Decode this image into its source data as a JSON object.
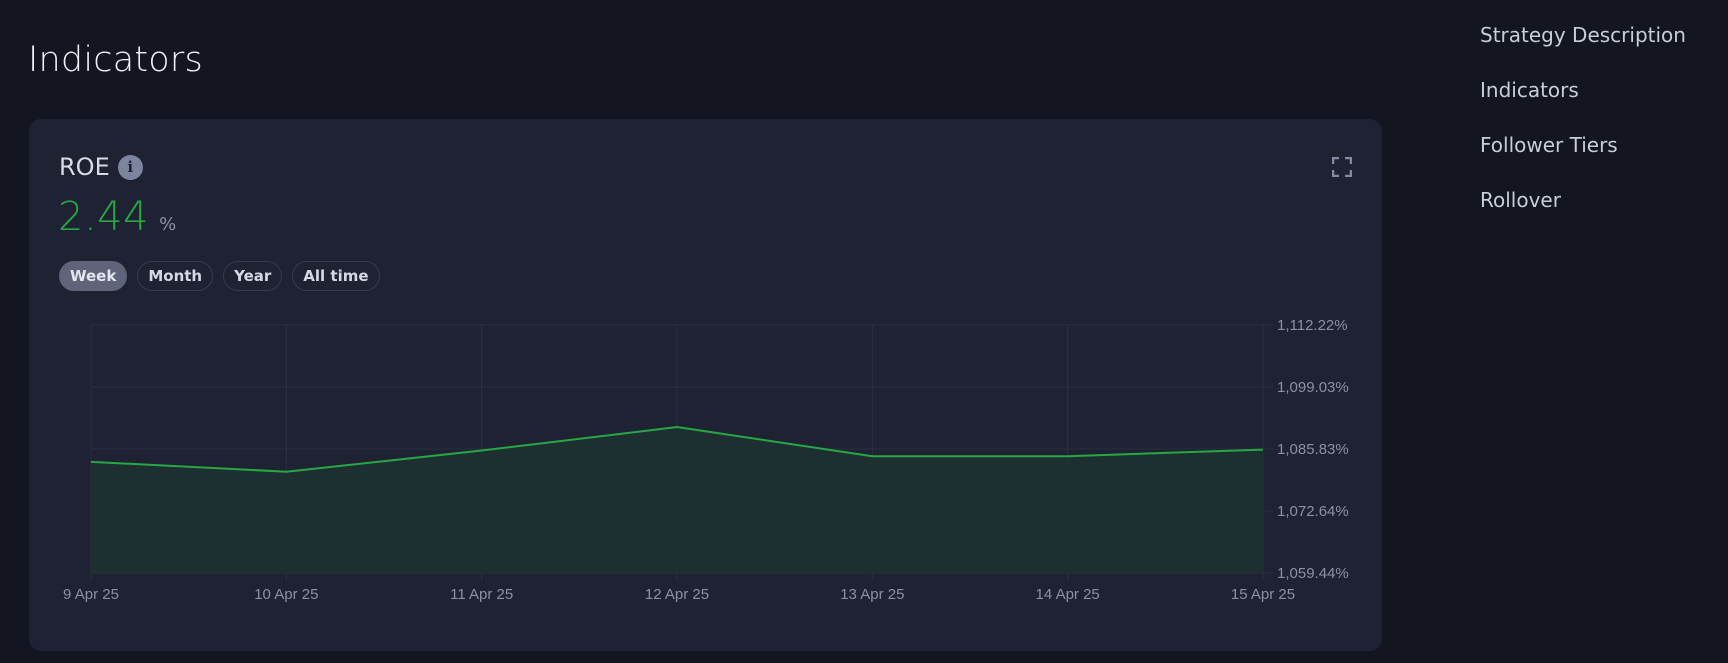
{
  "page": {
    "title": "Indicators"
  },
  "right_nav": {
    "items": [
      {
        "label": "Strategy Description"
      },
      {
        "label": "Indicators"
      },
      {
        "label": "Follower Tiers"
      },
      {
        "label": "Rollover"
      }
    ]
  },
  "card": {
    "metric_label": "ROE",
    "info_icon": "info-icon",
    "value": "2.44",
    "unit": "%",
    "value_color": "#27a844",
    "expand_icon": "fullscreen-icon",
    "periods": [
      {
        "label": "Week",
        "active": true
      },
      {
        "label": "Month",
        "active": false
      },
      {
        "label": "Year",
        "active": false
      },
      {
        "label": "All time",
        "active": false
      }
    ]
  },
  "chart_data": {
    "type": "area",
    "title": "ROE",
    "xlabel": "",
    "ylabel": "",
    "categories": [
      "9 Apr 25",
      "10 Apr 25",
      "11 Apr 25",
      "12 Apr 25",
      "13 Apr 25",
      "14 Apr 25",
      "15 Apr 25"
    ],
    "series": [
      {
        "name": "ROE",
        "color": "#27a844",
        "values": [
          1083.1,
          1081.0,
          1085.5,
          1090.5,
          1084.3,
          1084.3,
          1085.7
        ]
      }
    ],
    "y_ticks": [
      "1,112.22%",
      "1,099.03%",
      "1,085.83%",
      "1,072.64%",
      "1,059.44%"
    ],
    "y_tick_values": [
      1112.22,
      1099.03,
      1085.83,
      1072.64,
      1059.44
    ],
    "ylim": [
      1059.44,
      1112.22
    ],
    "y_axis_position": "right",
    "grid": true,
    "legend": "none"
  }
}
